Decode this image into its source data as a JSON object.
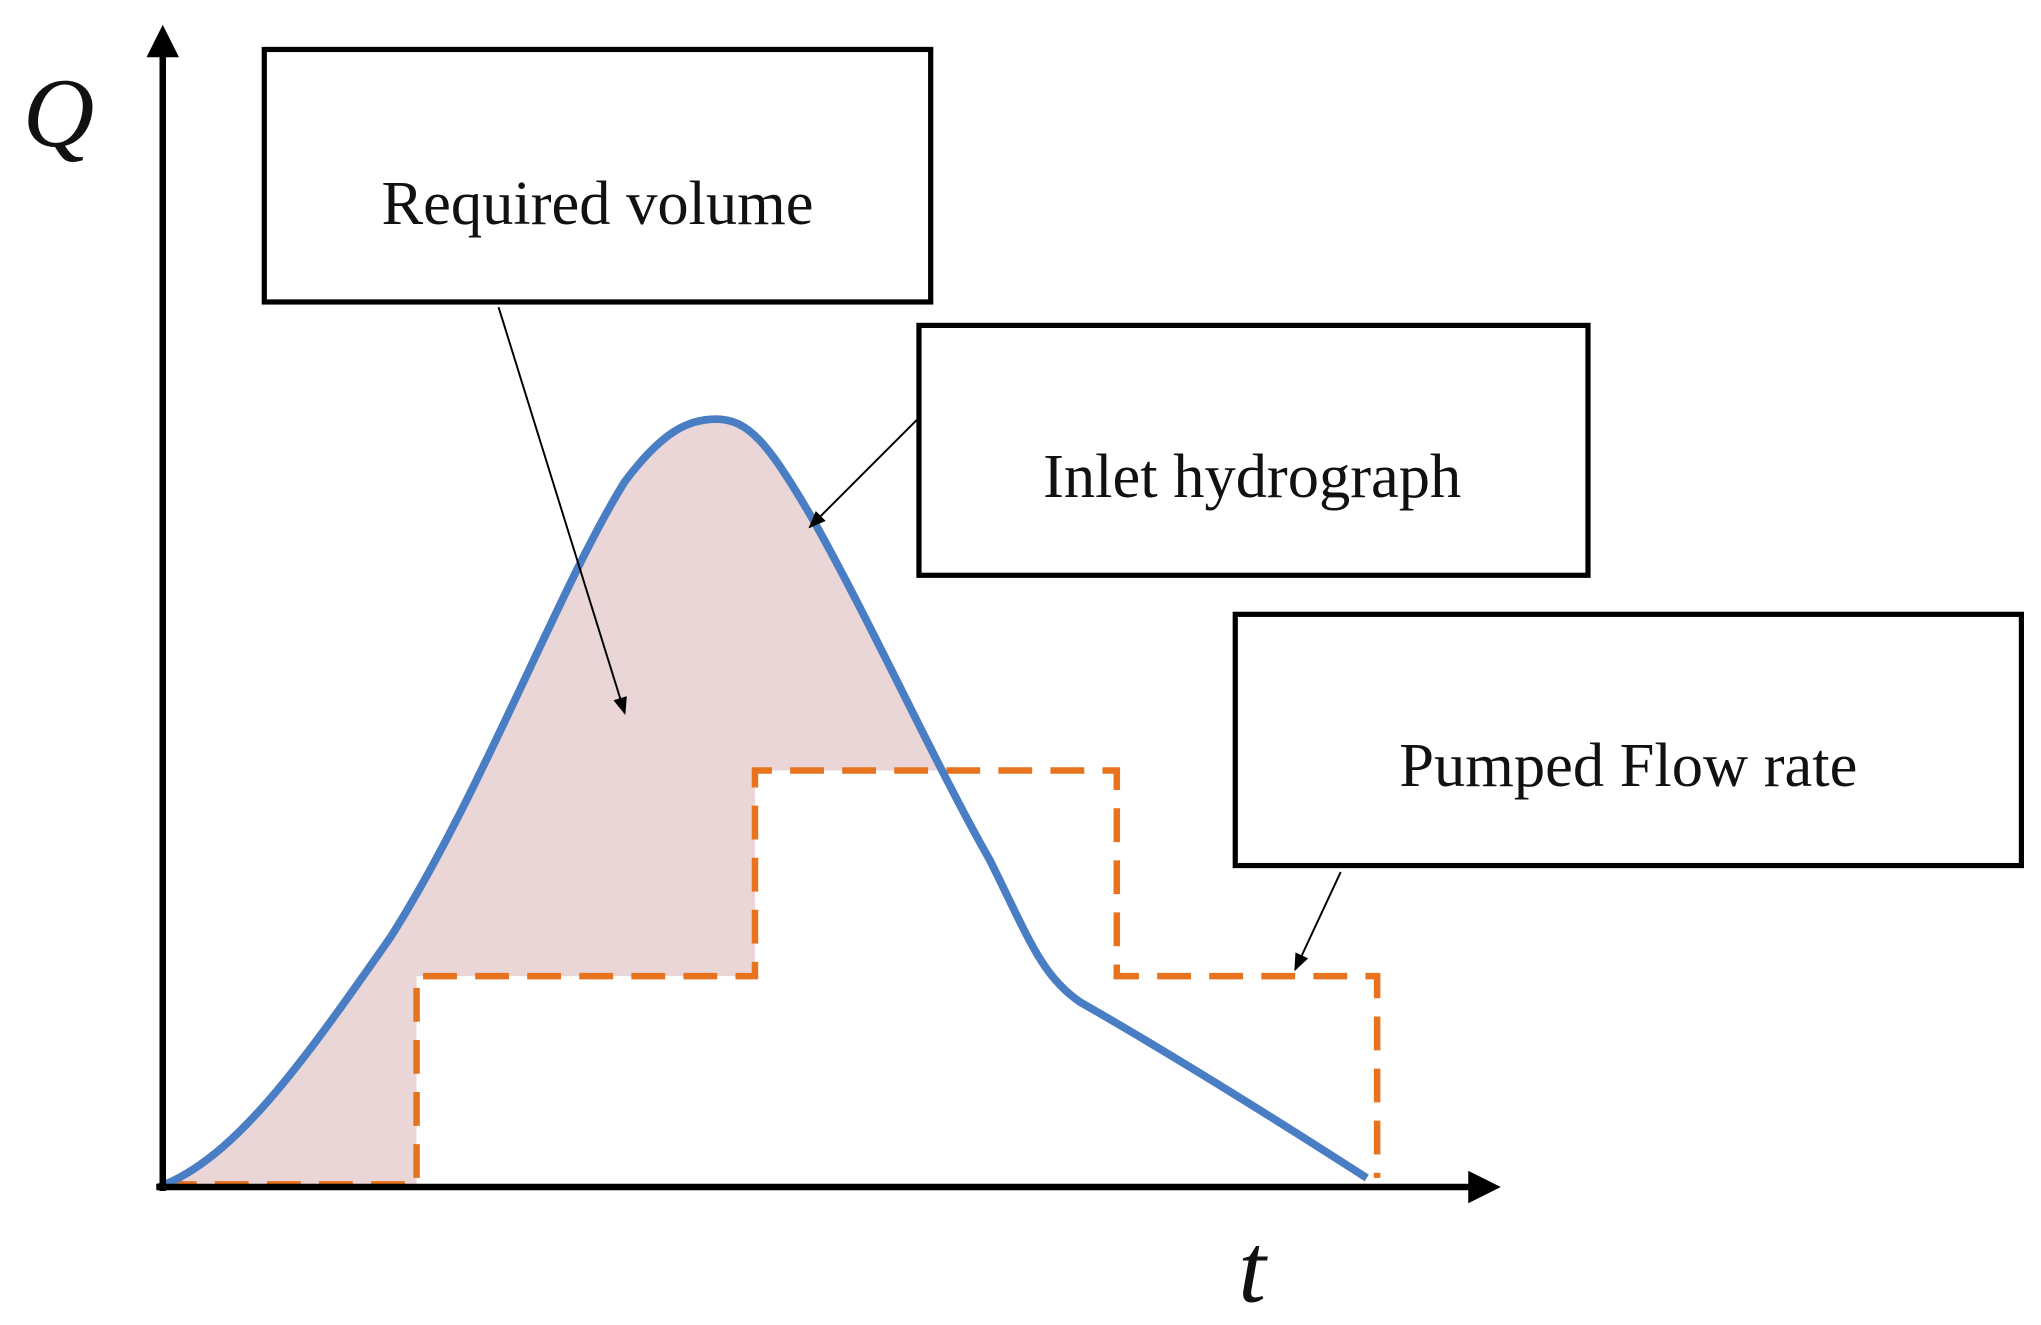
{
  "axes": {
    "y_label": "Q",
    "x_label": "t"
  },
  "annotations": [
    {
      "label": "Required volume"
    },
    {
      "label": "Inlet hydrograph"
    },
    {
      "label": "Pumped Flow rate"
    }
  ]
}
